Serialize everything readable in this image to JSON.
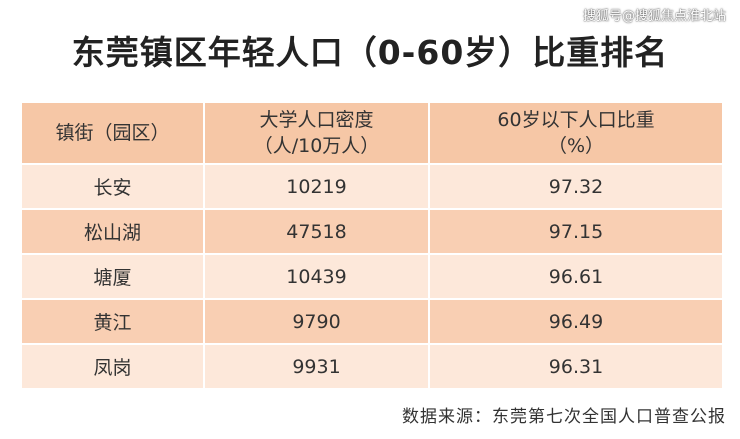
{
  "watermark": "搜狐号@搜狐焦点淮北站",
  "title": "东莞镇区年轻人口（0-60岁）比重排名",
  "table": {
    "header": [
      [
        "镇街（园区）"
      ],
      [
        "大学人口密度",
        "（人/10万人）"
      ],
      [
        "60岁以下人口比重",
        "（%）"
      ]
    ],
    "rows": [
      [
        "长安",
        "10219",
        "97.32"
      ],
      [
        "松山湖",
        "47518",
        "97.15"
      ],
      [
        "塘厦",
        "10439",
        "96.61"
      ],
      [
        "黄江",
        "9790",
        "96.49"
      ],
      [
        "凤岗",
        "9931",
        "96.31"
      ]
    ]
  },
  "source": "数据来源：东莞第七次全国人口普查公报"
}
